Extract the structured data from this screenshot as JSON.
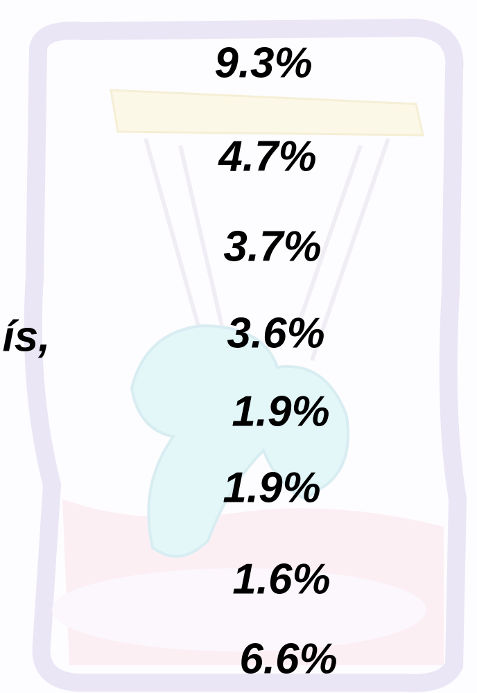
{
  "fragment": "ís,",
  "items": [
    "9.3%",
    "4.7%",
    "3.7%",
    "3.6%",
    "1.9%",
    "1.9%",
    "1.6%",
    "6.6%"
  ]
}
